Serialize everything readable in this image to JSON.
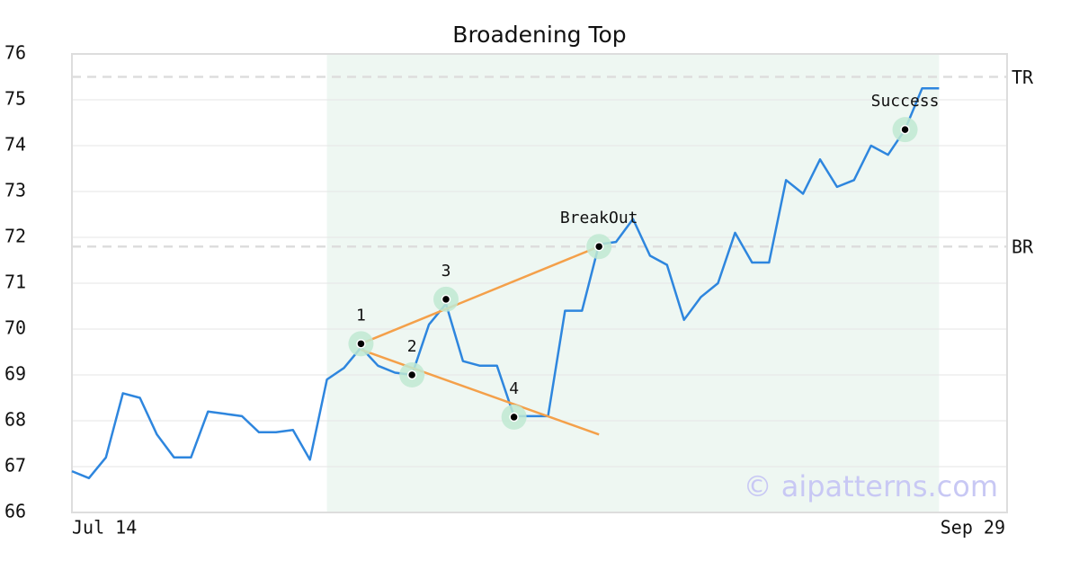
{
  "chart_data": {
    "type": "line",
    "title": "Broadening Top",
    "categories": [
      "Jul 14",
      null,
      null,
      null,
      null,
      null,
      null,
      null,
      null,
      null,
      null,
      null,
      null,
      null,
      null,
      null,
      null,
      null,
      null,
      null,
      null,
      null,
      null,
      null,
      null,
      null,
      null,
      null,
      null,
      null,
      null,
      null,
      null,
      null,
      null,
      null,
      null,
      null,
      null,
      null,
      null,
      null,
      null,
      null,
      null,
      null,
      null,
      null,
      null,
      null,
      null,
      null,
      null,
      null,
      null,
      "Sep 29"
    ],
    "series": [
      {
        "color": "#2e86de",
        "values": [
          66.9,
          66.75,
          67.2,
          68.6,
          68.5,
          67.7,
          67.2,
          67.2,
          68.2,
          68.15,
          68.1,
          67.75,
          67.75,
          67.8,
          67.15,
          68.9,
          69.15,
          69.6,
          69.2,
          69.05,
          69.0,
          70.1,
          70.55,
          69.3,
          69.2,
          69.2,
          68.1,
          68.1,
          68.1,
          70.4,
          70.4,
          71.85,
          71.9,
          72.4,
          71.6,
          71.4,
          70.2,
          70.7,
          71.0,
          72.1,
          71.45,
          71.45,
          73.25,
          72.95,
          73.7,
          73.1,
          73.25,
          74.0,
          73.8,
          74.35,
          75.25,
          75.25,
          null,
          null,
          null,
          null
        ]
      }
    ],
    "ylim": [
      66,
      76
    ],
    "yticks": [
      66,
      67,
      68,
      69,
      70,
      71,
      72,
      73,
      74,
      75,
      76
    ],
    "grid": true,
    "shaded_range": [
      15,
      51
    ],
    "shade_color": "#eef7f2",
    "reference_lines": [
      {
        "label": "TR",
        "value": 75.5
      },
      {
        "label": "BR",
        "value": 71.8
      }
    ],
    "trendlines": [
      {
        "color": "#f4a04a",
        "start": [
          17,
          69.68
        ],
        "end": [
          31,
          71.8
        ]
      },
      {
        "color": "#f4a04a",
        "start": [
          17,
          69.55
        ],
        "end": [
          31,
          67.7
        ]
      }
    ],
    "annotations": [
      {
        "label": "1",
        "index": 17,
        "value": 69.68
      },
      {
        "label": "2",
        "index": 20,
        "value": 69.0
      },
      {
        "label": "3",
        "index": 22,
        "value": 70.65
      },
      {
        "label": "4",
        "index": 26,
        "value": 68.08
      },
      {
        "label": "BreakOut",
        "index": 31,
        "value": 71.8
      },
      {
        "label": "Success",
        "index": 49,
        "value": 74.35
      }
    ],
    "watermark": "© aipatterns.com"
  }
}
